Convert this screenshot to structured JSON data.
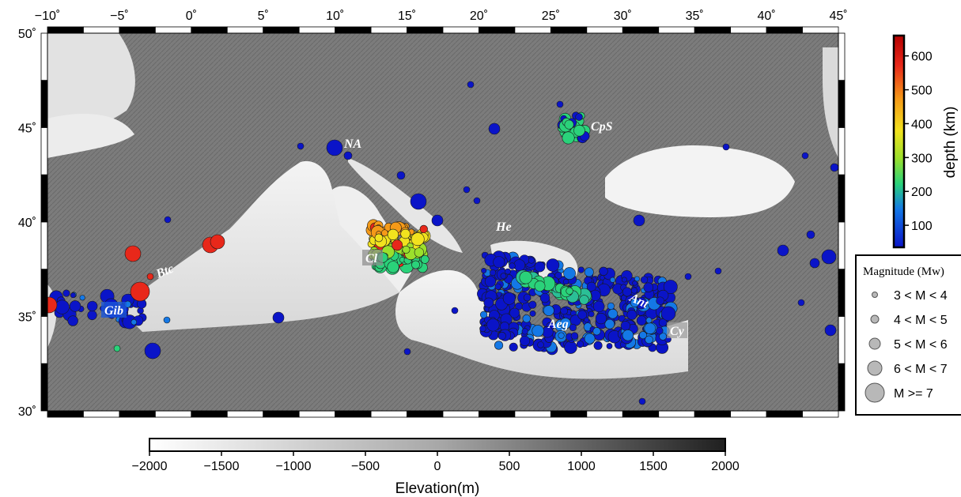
{
  "map": {
    "lon_ticks": [
      "−10˚",
      "−5˚",
      "0˚",
      "5˚",
      "10˚",
      "15˚",
      "20˚",
      "25˚",
      "30˚",
      "35˚",
      "40˚",
      "45˚"
    ],
    "lat_ticks": [
      "30˚",
      "35˚",
      "40˚",
      "45˚",
      "50˚"
    ],
    "regions": [
      {
        "id": "NA",
        "label": "NA"
      },
      {
        "id": "CpS",
        "label": "CpS"
      },
      {
        "id": "He",
        "label": "He"
      },
      {
        "id": "Cl",
        "label": "Cl"
      },
      {
        "id": "Btc",
        "label": "Btc"
      },
      {
        "id": "Gib",
        "label": "Gib"
      },
      {
        "id": "Aeg",
        "label": "Aeg"
      },
      {
        "id": "Ant",
        "label": "Ant"
      },
      {
        "id": "Cy",
        "label": "Cy"
      }
    ]
  },
  "depth_colorbar": {
    "label": "depth (km)",
    "ticks": [
      "100",
      "200",
      "300",
      "400",
      "500",
      "600"
    ],
    "colors": [
      "#0a14c8",
      "#1478e6",
      "#2ad27a",
      "#9be02c",
      "#f2e21e",
      "#f59a18",
      "#e8281a",
      "#b40000"
    ]
  },
  "magnitude_legend": {
    "title": "Magnitude (Mw)",
    "items": [
      "3 < M < 4",
      "4 < M < 5",
      "5 < M < 6",
      "6 < M < 7",
      "M >= 7"
    ]
  },
  "elevation_colorbar": {
    "label": "Elevation(m)",
    "ticks": [
      "−2000",
      "−1500",
      "−1000",
      "−500",
      "0",
      "500",
      "1000",
      "1500",
      "2000"
    ]
  }
}
